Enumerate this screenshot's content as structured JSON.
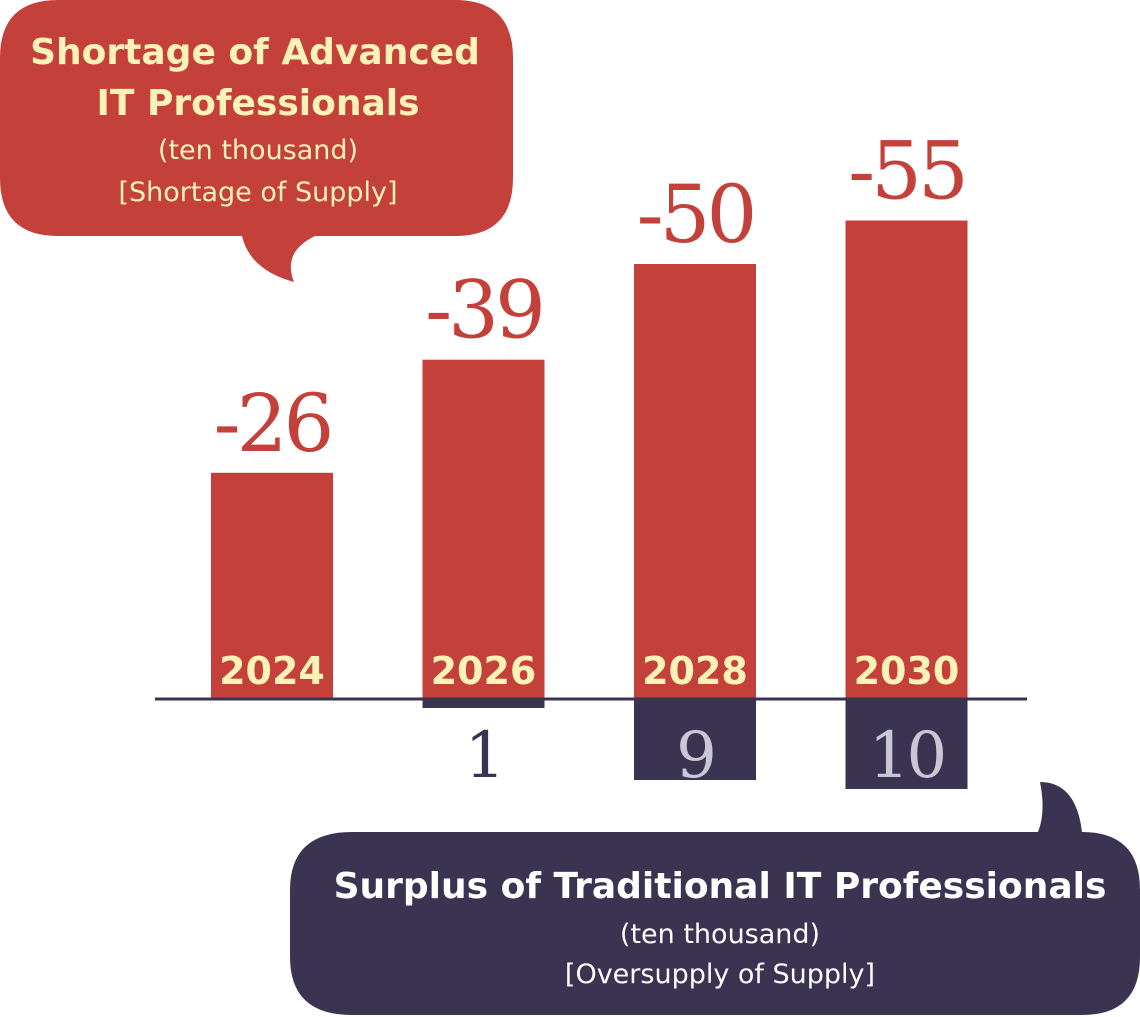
{
  "colors": {
    "shortage": "#c4403a",
    "surplus": "#3a3352",
    "year_label": "#fbf2b8",
    "surplus_value_light": "#c9c7d3",
    "surplus_value_dark": "#3a3352",
    "background": "#ffffff"
  },
  "shortage_callout": {
    "title_line1": "Shortage of Advanced",
    "title_line2": "IT Professionals",
    "unit": "(ten thousand)",
    "note": "[Shortage of Supply]"
  },
  "surplus_callout": {
    "title": "Surplus of Traditional IT Professionals",
    "unit": "(ten thousand)",
    "note": "[Oversupply of Supply]"
  },
  "chart_data": {
    "type": "bar",
    "categories": [
      "2024",
      "2026",
      "2028",
      "2030"
    ],
    "series": [
      {
        "name": "Shortage of Advanced IT Professionals",
        "values": [
          -26,
          -39,
          -50,
          -55
        ],
        "labels": [
          "-26",
          "-39",
          "-50",
          "-55"
        ]
      },
      {
        "name": "Surplus of Traditional IT Professionals",
        "values": [
          0,
          1,
          9,
          10
        ],
        "labels": [
          "",
          "1",
          "9",
          "10"
        ]
      }
    ],
    "grid": false,
    "legend": "none"
  }
}
